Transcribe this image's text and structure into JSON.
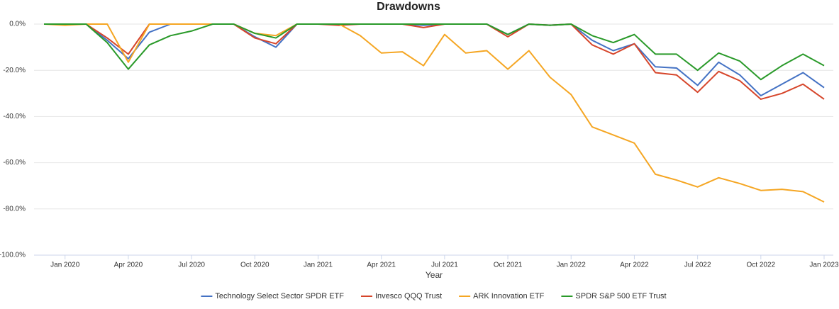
{
  "chart_data": {
    "type": "line",
    "title": "Drawdowns",
    "xlabel": "Year",
    "categories": [
      null,
      "Jan 2020",
      null,
      null,
      "Apr 2020",
      null,
      null,
      "Jul 2020",
      null,
      null,
      "Oct 2020",
      null,
      null,
      "Jan 2021",
      null,
      null,
      "Apr 2021",
      null,
      null,
      "Jul 2021",
      null,
      null,
      "Oct 2021",
      null,
      null,
      "Jan 2022",
      null,
      null,
      "Apr 2022",
      null,
      null,
      "Jul 2022",
      null,
      null,
      "Oct 2022",
      null,
      null,
      "Jan 2023"
    ],
    "ylim": [
      -100,
      0
    ],
    "yticks": [
      {
        "value": 0,
        "label": "0.0%"
      },
      {
        "value": -20,
        "label": "-20.0%"
      },
      {
        "value": -40,
        "label": "-40.0%"
      },
      {
        "value": -60,
        "label": "-60.0%"
      },
      {
        "value": -80,
        "label": "-80.0%"
      },
      {
        "value": -100,
        "label": "-100.0%"
      }
    ],
    "grid": true,
    "legend": "bottom",
    "series": [
      {
        "name": "Technology Select Sector SPDR ETF",
        "color": "#4472c4",
        "values": [
          0,
          0,
          0,
          -7,
          -15,
          -3.5,
          0,
          0,
          0,
          0,
          -5.5,
          -10,
          0,
          0,
          0,
          0,
          0,
          0,
          -0.5,
          0,
          0,
          0,
          -4.5,
          0,
          -0.5,
          0,
          -7,
          -11.5,
          -8.5,
          -18.5,
          -19,
          -26.5,
          -16.5,
          -22,
          -31,
          -26,
          -21,
          -27.5
        ]
      },
      {
        "name": "Invesco QQQ Trust",
        "color": "#d6452a",
        "values": [
          0,
          0,
          0,
          -6,
          -13,
          0,
          0,
          0,
          0,
          0,
          -6,
          -8.5,
          0,
          0,
          -0.5,
          0,
          0,
          0,
          -1.5,
          0,
          0,
          0,
          -5.5,
          0,
          -0.5,
          0,
          -9,
          -13,
          -8.5,
          -21,
          -22,
          -29.5,
          -20.5,
          -24.5,
          -32.5,
          -30,
          -26,
          -32.5
        ]
      },
      {
        "name": "ARK Innovation ETF",
        "color": "#f5a623",
        "values": [
          0,
          -0.5,
          0,
          0,
          -16.5,
          0,
          0,
          0,
          0,
          0,
          -4,
          -5,
          0,
          0,
          0,
          -5,
          -12.5,
          -12,
          -18,
          -4.5,
          -12.5,
          -11.5,
          -19.5,
          -11.5,
          -23,
          -30.5,
          -44.5,
          -48,
          -51.5,
          -65,
          -67.5,
          -70.5,
          -66.5,
          -69,
          -72,
          -71.5,
          -72.5,
          -77
        ]
      },
      {
        "name": "SPDR S&P 500 ETF Trust",
        "color": "#2a9a2a",
        "values": [
          0,
          0,
          0,
          -8,
          -19.5,
          -9,
          -5,
          -3,
          0,
          0,
          -4,
          -6,
          0,
          0,
          0,
          0,
          0,
          0,
          0,
          0,
          0,
          0,
          -4.5,
          0,
          -0.5,
          0,
          -5,
          -8,
          -4.5,
          -13,
          -13,
          -20,
          -12.5,
          -16,
          -24,
          -18,
          -13,
          -18
        ]
      }
    ]
  }
}
